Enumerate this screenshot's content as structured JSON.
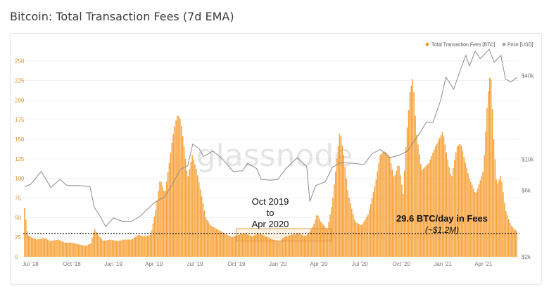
{
  "title": "Bitcoin: Total Transaction Fees (7d EMA)",
  "watermark": "glassnode",
  "legend": [
    {
      "label": "Total Transaction Fees [BTC]",
      "color": "#f7931a"
    },
    {
      "label": "Price [USD]",
      "color": "#9e9e9e"
    }
  ],
  "annotations": {
    "period_line1": "Oct 2019",
    "period_line2": "to",
    "period_line3": "Apr 2020",
    "avg_label": "29.6 BTC/day in Fees",
    "avg_sub": "(~$1.2M)"
  },
  "chart_data": {
    "type": "bar",
    "title": "Bitcoin: Total Transaction Fees (7d EMA)",
    "x_range": [
      "2018-06-15",
      "2021-06-20"
    ],
    "x_ticks": [
      "Jul '18",
      "Oct '18",
      "Jan '19",
      "Apr '19",
      "Jul '19",
      "Oct '19",
      "Jan '20",
      "Apr '20",
      "Jul '20",
      "Oct '20",
      "Jan '21",
      "Apr '21"
    ],
    "y_left_ticks": [
      0,
      25,
      50,
      75,
      100,
      125,
      150,
      175,
      200,
      225,
      250
    ],
    "y_left_range": [
      0,
      265
    ],
    "y_right_ticks": [
      "$2k",
      "$6k",
      "$10k",
      "$40k"
    ],
    "y_right_scale": "log",
    "y_right_range": [
      2000,
      62000
    ],
    "reference_line": 29.6,
    "highlight_range": [
      "2019-10-01",
      "2020-04-30"
    ],
    "series": [
      {
        "name": "Total Transaction Fees [BTC]",
        "type": "bar",
        "color": "#f7931a",
        "points": [
          [
            "2018-06-18",
            62
          ],
          [
            "2018-06-25",
            28
          ],
          [
            "2018-07-02",
            25
          ],
          [
            "2018-07-15",
            22
          ],
          [
            "2018-08-01",
            24
          ],
          [
            "2018-08-15",
            20
          ],
          [
            "2018-09-01",
            22
          ],
          [
            "2018-09-15",
            18
          ],
          [
            "2018-10-01",
            18
          ],
          [
            "2018-10-15",
            16
          ],
          [
            "2018-11-01",
            14
          ],
          [
            "2018-11-12",
            17
          ],
          [
            "2018-11-20",
            36
          ],
          [
            "2018-11-28",
            28
          ],
          [
            "2018-12-10",
            20
          ],
          [
            "2018-12-25",
            22
          ],
          [
            "2019-01-10",
            20
          ],
          [
            "2019-01-25",
            22
          ],
          [
            "2019-02-10",
            22
          ],
          [
            "2019-02-25",
            28
          ],
          [
            "2019-03-10",
            26
          ],
          [
            "2019-03-25",
            28
          ],
          [
            "2019-04-05",
            60
          ],
          [
            "2019-04-15",
            100
          ],
          [
            "2019-04-25",
            80
          ],
          [
            "2019-05-05",
            120
          ],
          [
            "2019-05-12",
            150
          ],
          [
            "2019-05-18",
            170
          ],
          [
            "2019-05-24",
            182
          ],
          [
            "2019-05-30",
            175
          ],
          [
            "2019-06-05",
            150
          ],
          [
            "2019-06-15",
            100
          ],
          [
            "2019-06-25",
            130
          ],
          [
            "2019-07-05",
            110
          ],
          [
            "2019-07-15",
            80
          ],
          [
            "2019-07-25",
            50
          ],
          [
            "2019-08-05",
            40
          ],
          [
            "2019-08-20",
            35
          ],
          [
            "2019-09-05",
            30
          ],
          [
            "2019-09-20",
            25
          ],
          [
            "2019-10-05",
            28
          ],
          [
            "2019-10-20",
            30
          ],
          [
            "2019-11-05",
            26
          ],
          [
            "2019-11-20",
            30
          ],
          [
            "2019-12-05",
            26
          ],
          [
            "2019-12-20",
            22
          ],
          [
            "2020-01-05",
            20
          ],
          [
            "2020-01-15",
            25
          ],
          [
            "2020-02-01",
            28
          ],
          [
            "2020-02-15",
            30
          ],
          [
            "2020-03-01",
            26
          ],
          [
            "2020-03-10",
            30
          ],
          [
            "2020-03-20",
            40
          ],
          [
            "2020-03-28",
            55
          ],
          [
            "2020-04-05",
            45
          ],
          [
            "2020-04-20",
            35
          ],
          [
            "2020-05-01",
            70
          ],
          [
            "2020-05-10",
            120
          ],
          [
            "2020-05-18",
            162
          ],
          [
            "2020-05-26",
            130
          ],
          [
            "2020-06-05",
            80
          ],
          [
            "2020-06-20",
            45
          ],
          [
            "2020-07-05",
            40
          ],
          [
            "2020-07-20",
            55
          ],
          [
            "2020-08-05",
            95
          ],
          [
            "2020-08-15",
            130
          ],
          [
            "2020-08-25",
            135
          ],
          [
            "2020-09-05",
            128
          ],
          [
            "2020-09-15",
            100
          ],
          [
            "2020-09-25",
            120
          ],
          [
            "2020-10-05",
            80
          ],
          [
            "2020-10-12",
            150
          ],
          [
            "2020-10-20",
            210
          ],
          [
            "2020-10-27",
            230
          ],
          [
            "2020-11-03",
            160
          ],
          [
            "2020-11-15",
            110
          ],
          [
            "2020-12-01",
            120
          ],
          [
            "2020-12-15",
            140
          ],
          [
            "2021-01-01",
            160
          ],
          [
            "2021-01-10",
            130
          ],
          [
            "2021-01-20",
            100
          ],
          [
            "2021-02-01",
            140
          ],
          [
            "2021-02-10",
            145
          ],
          [
            "2021-02-20",
            120
          ],
          [
            "2021-03-01",
            100
          ],
          [
            "2021-03-15",
            80
          ],
          [
            "2021-04-01",
            110
          ],
          [
            "2021-04-10",
            200
          ],
          [
            "2021-04-17",
            240
          ],
          [
            "2021-04-24",
            150
          ],
          [
            "2021-05-01",
            90
          ],
          [
            "2021-05-10",
            105
          ],
          [
            "2021-05-20",
            60
          ],
          [
            "2021-06-01",
            40
          ],
          [
            "2021-06-15",
            32
          ]
        ]
      },
      {
        "name": "Price [USD]",
        "type": "line",
        "color": "#8c8c8c",
        "points": [
          [
            "2018-06-18",
            6400
          ],
          [
            "2018-07-01",
            6600
          ],
          [
            "2018-07-25",
            8200
          ],
          [
            "2018-08-15",
            6300
          ],
          [
            "2018-09-05",
            7200
          ],
          [
            "2018-09-20",
            6500
          ],
          [
            "2018-10-15",
            6500
          ],
          [
            "2018-11-10",
            6400
          ],
          [
            "2018-11-20",
            4500
          ],
          [
            "2018-12-01",
            4000
          ],
          [
            "2018-12-15",
            3300
          ],
          [
            "2019-01-01",
            3800
          ],
          [
            "2019-01-20",
            3600
          ],
          [
            "2019-02-10",
            3600
          ],
          [
            "2019-03-01",
            3900
          ],
          [
            "2019-04-02",
            4900
          ],
          [
            "2019-04-25",
            5400
          ],
          [
            "2019-05-10",
            6500
          ],
          [
            "2019-05-30",
            8500
          ],
          [
            "2019-06-15",
            9000
          ],
          [
            "2019-06-26",
            12900
          ],
          [
            "2019-07-10",
            12000
          ],
          [
            "2019-07-20",
            10500
          ],
          [
            "2019-08-10",
            11500
          ],
          [
            "2019-09-01",
            10000
          ],
          [
            "2019-09-24",
            8200
          ],
          [
            "2019-10-15",
            8300
          ],
          [
            "2019-10-26",
            9400
          ],
          [
            "2019-11-15",
            8600
          ],
          [
            "2019-11-25",
            7200
          ],
          [
            "2019-12-15",
            7100
          ],
          [
            "2020-01-01",
            7200
          ],
          [
            "2020-01-20",
            8700
          ],
          [
            "2020-02-13",
            10300
          ],
          [
            "2020-03-05",
            8900
          ],
          [
            "2020-03-12",
            5000
          ],
          [
            "2020-03-25",
            6500
          ],
          [
            "2020-04-15",
            6900
          ],
          [
            "2020-05-01",
            8800
          ],
          [
            "2020-05-20",
            9500
          ],
          [
            "2020-06-15",
            9400
          ],
          [
            "2020-07-10",
            9200
          ],
          [
            "2020-07-28",
            11000
          ],
          [
            "2020-08-15",
            11800
          ],
          [
            "2020-09-05",
            10300
          ],
          [
            "2020-09-25",
            10700
          ],
          [
            "2020-10-15",
            11500
          ],
          [
            "2020-10-25",
            13000
          ],
          [
            "2020-11-10",
            15300
          ],
          [
            "2020-11-25",
            18500
          ],
          [
            "2020-12-10",
            18500
          ],
          [
            "2020-12-27",
            26500
          ],
          [
            "2021-01-08",
            39000
          ],
          [
            "2021-01-25",
            32000
          ],
          [
            "2021-02-10",
            45000
          ],
          [
            "2021-02-21",
            56000
          ],
          [
            "2021-03-01",
            47000
          ],
          [
            "2021-03-14",
            60000
          ],
          [
            "2021-03-25",
            53000
          ],
          [
            "2021-04-14",
            62000
          ],
          [
            "2021-04-25",
            50000
          ],
          [
            "2021-05-10",
            56000
          ],
          [
            "2021-05-20",
            38000
          ],
          [
            "2021-06-01",
            36000
          ],
          [
            "2021-06-15",
            39000
          ]
        ]
      }
    ]
  }
}
